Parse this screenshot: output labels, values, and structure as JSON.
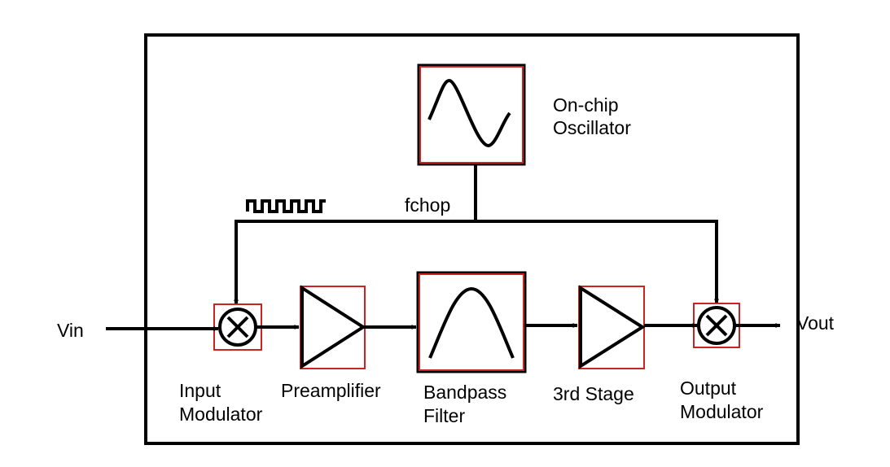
{
  "diagram": {
    "signals": {
      "input": "Vin",
      "output": "Vout",
      "chop_clock": "fchop"
    },
    "blocks": {
      "oscillator": {
        "label_lines": [
          "On-chip",
          "Oscillator"
        ],
        "icon": "sine-wave-icon"
      },
      "input_modulator": {
        "label_lines": [
          "Input",
          "Modulator"
        ],
        "icon": "multiplier-icon"
      },
      "preamplifier": {
        "label_lines": [
          "Preamplifier"
        ],
        "icon": "amplifier-triangle-icon"
      },
      "bandpass_filter": {
        "label_lines": [
          "Bandpass",
          "Filter"
        ],
        "icon": "bandpass-curve-icon"
      },
      "third_stage": {
        "label_lines": [
          "3rd Stage"
        ],
        "icon": "amplifier-triangle-icon"
      },
      "output_modulator": {
        "label_lines": [
          "Output",
          "Modulator"
        ],
        "icon": "multiplier-icon"
      }
    },
    "colors": {
      "block_outline": "#cc2222",
      "line": "#000000"
    }
  }
}
